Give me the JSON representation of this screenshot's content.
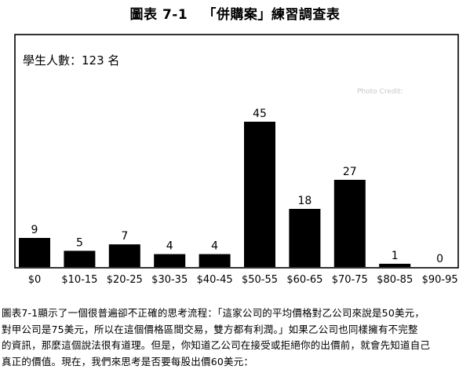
{
  "figure": {
    "title": "圖表 7-1   「併購案」練習調查表",
    "watermark": "Photo Credit:"
  },
  "chart_data": {
    "type": "bar",
    "title": "",
    "annotation": "學生人數：123 名",
    "categories": [
      "$0",
      "$10-15",
      "$20-25",
      "$30-35",
      "$40-45",
      "$50-55",
      "$60-65",
      "$70-75",
      "$80-85",
      "$90-95"
    ],
    "values": [
      9,
      5,
      7,
      4,
      4,
      45,
      18,
      27,
      1,
      0
    ],
    "xlabel": "",
    "ylabel": "",
    "ylim": [
      0,
      72
    ],
    "grid": false,
    "legend": "none",
    "bar_color": "#000000"
  },
  "caption": {
    "lines": [
      "圖表7-1顯示了一個很普遍卻不正確的思考流程：「這家公司的平均價格對乙公司來說是50美元，",
      "對甲公司是75美元，所以在這個價格區間交易，雙方都有利潤。」如果乙公司也同樣擁有不完整",
      "的資訊，那麼這個說法很有道理。但是，你知道乙公司在接受或拒絕你的出價前，就會先知道自己",
      "真正的價值。現在，我們來思考是否要每股出價60美元："
    ]
  }
}
